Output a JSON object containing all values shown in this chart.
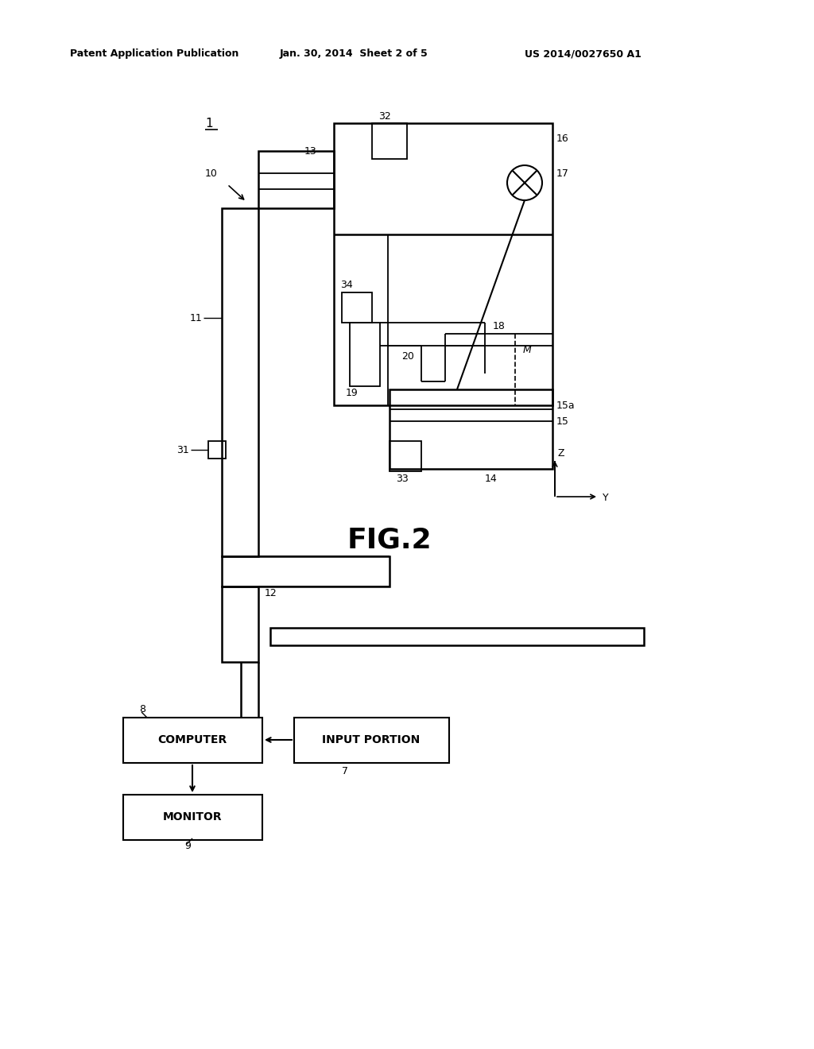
{
  "bg_color": "#ffffff",
  "header_left": "Patent Application Publication",
  "header_mid": "Jan. 30, 2014  Sheet 2 of 5",
  "header_right": "US 2014/0027650 A1",
  "fig_label": "FIG.2",
  "line_color": "#000000",
  "text_color": "#000000"
}
